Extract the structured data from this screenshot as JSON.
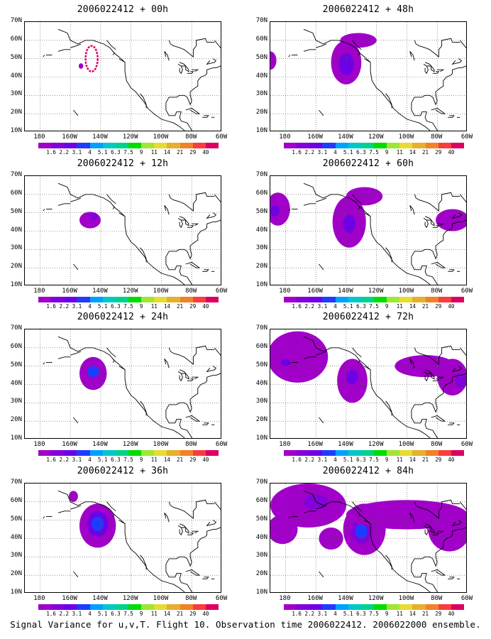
{
  "caption": "Signal Variance for u,v,T. Flight 10. Observation time 2006022412. 2006022000 ensemble.",
  "x_ticks": [
    "180",
    "160W",
    "140W",
    "120W",
    "100W",
    "80W",
    "60W"
  ],
  "y_ticks": [
    "70N",
    "60N",
    "50N",
    "40N",
    "30N",
    "20N",
    "10N"
  ],
  "colorbar": {
    "levels": [
      "1.6",
      "2.2",
      "3.1",
      "4",
      "5.1",
      "6.3",
      "7.5",
      "9",
      "11",
      "14",
      "21",
      "29",
      "40"
    ],
    "colors": [
      "#a000c8",
      "#8200dc",
      "#6e00e6",
      "#1e3cff",
      "#00a0ff",
      "#00c8c8",
      "#00d28c",
      "#00dc00",
      "#a0e632",
      "#e6dc32",
      "#e6af2d",
      "#f08228",
      "#fa3c3c",
      "#dc0064"
    ]
  },
  "map_extent": {
    "lon": [
      -190,
      -60
    ],
    "lat": [
      10,
      70
    ]
  },
  "panels": [
    {
      "title": "2006022412 + 00h",
      "blobs": [
        {
          "lon": -146,
          "lat": 50,
          "rx": 4,
          "ry": 7,
          "level": 13,
          "outline": true
        },
        {
          "lon": -153,
          "lat": 46,
          "rx": 1.5,
          "ry": 1.5,
          "level": 0
        }
      ]
    },
    {
      "title": "2006022412 + 12h",
      "blobs": [
        {
          "lon": -147,
          "lat": 46,
          "rx": 7,
          "ry": 4.5,
          "level": 0
        },
        {
          "lon": -145,
          "lat": 48,
          "rx": 3,
          "ry": 2,
          "level": 1
        }
      ]
    },
    {
      "title": "2006022412 + 24h",
      "blobs": [
        {
          "lon": -145,
          "lat": 46,
          "rx": 9,
          "ry": 9,
          "level": 0
        },
        {
          "lon": -145,
          "lat": 47,
          "rx": 4,
          "ry": 3,
          "level": 3
        }
      ]
    },
    {
      "title": "2006022412 + 36h",
      "blobs": [
        {
          "lon": -142,
          "lat": 47,
          "rx": 12,
          "ry": 12,
          "level": 0
        },
        {
          "lon": -142,
          "lat": 48,
          "rx": 7,
          "ry": 7,
          "level": 2
        },
        {
          "lon": -142,
          "lat": 48,
          "rx": 4,
          "ry": 4,
          "level": 3
        },
        {
          "lon": -158,
          "lat": 63,
          "rx": 3,
          "ry": 3,
          "level": 0
        }
      ]
    },
    {
      "title": "2006022412 + 48h",
      "blobs": [
        {
          "lon": -140,
          "lat": 48,
          "rx": 10,
          "ry": 12,
          "level": 0
        },
        {
          "lon": -140,
          "lat": 47,
          "rx": 5,
          "ry": 6,
          "level": 2
        },
        {
          "lon": -132,
          "lat": 60,
          "rx": 12,
          "ry": 4,
          "level": 0
        },
        {
          "lon": -190,
          "lat": 49,
          "rx": 4,
          "ry": 5,
          "level": 0
        }
      ]
    },
    {
      "title": "2006022412 + 60h",
      "blobs": [
        {
          "lon": -138,
          "lat": 45,
          "rx": 11,
          "ry": 14,
          "level": 0
        },
        {
          "lon": -138,
          "lat": 44,
          "rx": 4,
          "ry": 5,
          "level": 2
        },
        {
          "lon": -185,
          "lat": 52,
          "rx": 8,
          "ry": 9,
          "level": 0
        },
        {
          "lon": -187,
          "lat": 51,
          "rx": 3,
          "ry": 3,
          "level": 2
        },
        {
          "lon": -128,
          "lat": 59,
          "rx": 12,
          "ry": 5,
          "level": 0
        },
        {
          "lon": -70,
          "lat": 46,
          "rx": 11,
          "ry": 6,
          "level": 0
        }
      ]
    },
    {
      "title": "2006022412 + 72h",
      "blobs": [
        {
          "lon": -136,
          "lat": 42,
          "rx": 10,
          "ry": 12,
          "level": 0
        },
        {
          "lon": -136,
          "lat": 44,
          "rx": 4,
          "ry": 4,
          "level": 2
        },
        {
          "lon": -172,
          "lat": 55,
          "rx": 20,
          "ry": 14,
          "level": 0
        },
        {
          "lon": -180,
          "lat": 52,
          "rx": 3,
          "ry": 2,
          "level": 2
        },
        {
          "lon": -88,
          "lat": 50,
          "rx": 20,
          "ry": 6,
          "level": 0
        },
        {
          "lon": -70,
          "lat": 44,
          "rx": 10,
          "ry": 10,
          "level": 0
        },
        {
          "lon": -64,
          "lat": 42,
          "rx": 4,
          "ry": 4,
          "level": 1
        }
      ]
    },
    {
      "title": "2006022412 + 84h",
      "blobs": [
        {
          "lon": -128,
          "lat": 45,
          "rx": 14,
          "ry": 14,
          "level": 0
        },
        {
          "lon": -130,
          "lat": 44,
          "rx": 7,
          "ry": 7,
          "level": 1
        },
        {
          "lon": -130,
          "lat": 44,
          "rx": 4,
          "ry": 4,
          "level": 3
        },
        {
          "lon": -165,
          "lat": 58,
          "rx": 25,
          "ry": 12,
          "level": 0
        },
        {
          "lon": -160,
          "lat": 60,
          "rx": 8,
          "ry": 4,
          "level": 1
        },
        {
          "lon": -100,
          "lat": 53,
          "rx": 40,
          "ry": 8,
          "level": 0
        },
        {
          "lon": -72,
          "lat": 45,
          "rx": 14,
          "ry": 12,
          "level": 0
        },
        {
          "lon": -182,
          "lat": 45,
          "rx": 10,
          "ry": 8,
          "level": 0
        },
        {
          "lon": -150,
          "lat": 40,
          "rx": 8,
          "ry": 6,
          "level": 0
        }
      ]
    }
  ]
}
